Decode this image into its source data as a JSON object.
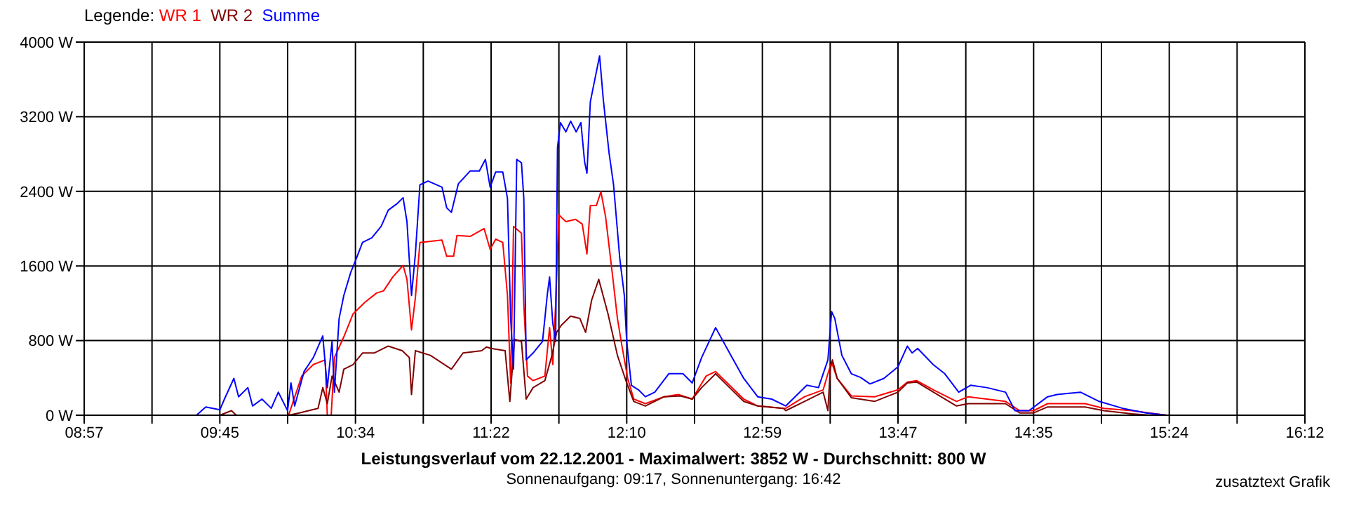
{
  "chart_data": {
    "type": "line",
    "title": "Leistungsverlauf vom 22.12.2001 - Maximalwert: 3852 W - Durchschnitt: 800 W",
    "subtitle": "Sonnenaufgang: 09:17, Sonnenuntergang: 16:42",
    "annotations": [
      "zusatztext Grafik"
    ],
    "legend_title": "Legende:",
    "legend": "top left",
    "grid": true,
    "marker": "none",
    "line_style": "solid",
    "xlim": [
      8.95,
      16.2
    ],
    "xticks": [
      {
        "value": 8.95,
        "label": "08:57"
      },
      {
        "value": 9.3528,
        "label": null
      },
      {
        "value": 9.7556,
        "label": "09:45"
      },
      {
        "value": 10.1583,
        "label": null
      },
      {
        "value": 10.5611,
        "label": "10:34"
      },
      {
        "value": 10.9639,
        "label": null
      },
      {
        "value": 11.3667,
        "label": "11:22"
      },
      {
        "value": 11.7694,
        "label": null
      },
      {
        "value": 12.1722,
        "label": "12:10"
      },
      {
        "value": 12.575,
        "label": null
      },
      {
        "value": 12.9778,
        "label": "12:59"
      },
      {
        "value": 13.3806,
        "label": null
      },
      {
        "value": 13.7833,
        "label": "13:47"
      },
      {
        "value": 14.1861,
        "label": null
      },
      {
        "value": 14.5889,
        "label": "14:35"
      },
      {
        "value": 14.9917,
        "label": null
      },
      {
        "value": 15.3944,
        "label": "15:24"
      },
      {
        "value": 15.7972,
        "label": null
      },
      {
        "value": 16.2,
        "label": "16:12"
      }
    ],
    "ylim": [
      0,
      4000
    ],
    "yticks": [
      {
        "value": 0,
        "label": "0 W"
      },
      {
        "value": 800,
        "label": "800 W"
      },
      {
        "value": 1600,
        "label": "1600 W"
      },
      {
        "value": 2400,
        "label": "2400 W"
      },
      {
        "value": 3200,
        "label": "3200 W"
      },
      {
        "value": 4000,
        "label": "4000 W"
      }
    ],
    "series": [
      {
        "name": "WR 1",
        "color": "#ff0000",
        "x": [
          10.164,
          10.242,
          10.311,
          10.381,
          10.394,
          10.417,
          10.436,
          10.492,
          10.547,
          10.617,
          10.686,
          10.728,
          10.783,
          10.844,
          10.867,
          10.894,
          10.917,
          10.944,
          11.075,
          11.103,
          11.144,
          11.164,
          11.242,
          11.325,
          11.361,
          11.394,
          11.436,
          11.464,
          11.483,
          11.5,
          11.547,
          11.561,
          11.583,
          11.616,
          11.686,
          11.714,
          11.733,
          11.75,
          11.769,
          11.811,
          11.867,
          11.908,
          11.936,
          11.956,
          11.992,
          12.019,
          12.047,
          12.089,
          12.117,
          12.144,
          12.178,
          12.214,
          12.283,
          12.394,
          12.478,
          12.561,
          12.644,
          12.7,
          12.783,
          12.867,
          12.95,
          13.103,
          13.117,
          13.228,
          13.339,
          13.367,
          13.389,
          13.422,
          13.506,
          13.644,
          13.783,
          13.839,
          13.894,
          13.994,
          14.131,
          14.2,
          14.422,
          14.506,
          14.589,
          14.672,
          14.894,
          15.006,
          15.172,
          15.339,
          15.381
        ],
        "values": [
          0,
          420,
          543,
          593,
          0,
          0,
          618,
          840,
          1087,
          1210,
          1309,
          1334,
          1482,
          1605,
          1457,
          914,
          1260,
          1852,
          1877,
          1704,
          1704,
          1927,
          1917,
          2001,
          1778,
          1887,
          1852,
          1284,
          346,
          2025,
          1951,
          1186,
          420,
          371,
          420,
          939,
          543,
          1186,
          2149,
          2075,
          2100,
          2050,
          1729,
          2248,
          2248,
          2396,
          2124,
          1482,
          1037,
          741,
          395,
          173,
          124,
          198,
          222,
          173,
          420,
          469,
          321,
          173,
          99,
          74,
          74,
          198,
          272,
          445,
          568,
          395,
          207,
          198,
          272,
          356,
          371,
          272,
          148,
          198,
          148,
          49,
          49,
          124,
          124,
          74,
          49,
          10,
          0
        ]
      },
      {
        "name": "WR 2",
        "color": "#800000",
        "x": [
          9.756,
          9.825,
          9.853,
          10.164,
          10.228,
          10.283,
          10.339,
          10.367,
          10.394,
          10.422,
          10.464,
          10.492,
          10.547,
          10.603,
          10.672,
          10.756,
          10.839,
          10.881,
          10.894,
          10.917,
          11.006,
          11.131,
          11.2,
          11.311,
          11.339,
          11.367,
          11.45,
          11.478,
          11.506,
          11.547,
          11.575,
          11.616,
          11.686,
          11.728,
          11.756,
          11.783,
          11.839,
          11.894,
          11.928,
          11.964,
          12.006,
          12.061,
          12.117,
          12.172,
          12.214,
          12.283,
          12.394,
          12.492,
          12.561,
          12.617,
          12.7,
          12.783,
          12.867,
          12.95,
          13.103,
          13.117,
          13.228,
          13.339,
          13.367,
          13.381,
          13.394,
          13.422,
          13.506,
          13.644,
          13.783,
          13.839,
          13.894,
          13.994,
          14.131,
          14.2,
          14.422,
          14.506,
          14.589,
          14.672,
          14.894,
          15.006,
          15.172,
          15.283
        ],
        "values": [
          0,
          49,
          0,
          0,
          25,
          49,
          74,
          296,
          124,
          420,
          247,
          494,
          543,
          667,
          667,
          741,
          692,
          618,
          222,
          692,
          642,
          494,
          667,
          692,
          731,
          716,
          692,
          148,
          815,
          790,
          173,
          296,
          371,
          642,
          889,
          963,
          1062,
          1037,
          889,
          1235,
          1457,
          1087,
          642,
          346,
          148,
          99,
          198,
          207,
          173,
          296,
          445,
          296,
          148,
          99,
          74,
          49,
          148,
          247,
          49,
          494,
          593,
          395,
          188,
          148,
          247,
          346,
          356,
          247,
          99,
          124,
          124,
          25,
          25,
          89,
          89,
          49,
          15,
          0
        ]
      },
      {
        "name": "Summe",
        "color": "#0000ff",
        "x": [
          9.617,
          9.672,
          9.756,
          9.783,
          9.839,
          9.867,
          9.922,
          9.95,
          10.006,
          10.061,
          10.103,
          10.158,
          10.178,
          10.2,
          10.256,
          10.311,
          10.367,
          10.394,
          10.422,
          10.436,
          10.464,
          10.492,
          10.533,
          10.561,
          10.603,
          10.658,
          10.714,
          10.756,
          10.811,
          10.844,
          10.867,
          10.894,
          10.917,
          10.944,
          10.992,
          11.075,
          11.103,
          11.131,
          11.172,
          11.242,
          11.297,
          11.333,
          11.361,
          11.394,
          11.436,
          11.464,
          11.483,
          11.5,
          11.519,
          11.547,
          11.561,
          11.575,
          11.616,
          11.672,
          11.7,
          11.714,
          11.733,
          11.75,
          11.761,
          11.778,
          11.811,
          11.839,
          11.872,
          11.9,
          11.922,
          11.936,
          11.956,
          11.978,
          12.011,
          12.033,
          12.067,
          12.094,
          12.131,
          12.158,
          12.172,
          12.2,
          12.242,
          12.283,
          12.339,
          12.422,
          12.506,
          12.561,
          12.617,
          12.7,
          12.783,
          12.867,
          12.95,
          13.033,
          13.117,
          13.242,
          13.311,
          13.367,
          13.389,
          13.408,
          13.45,
          13.506,
          13.561,
          13.617,
          13.7,
          13.783,
          13.839,
          13.867,
          13.9,
          13.992,
          14.061,
          14.144,
          14.214,
          14.311,
          14.422,
          14.478,
          14.561,
          14.672,
          14.728,
          14.867,
          14.978,
          15.117,
          15.256,
          15.381
        ],
        "values": [
          0,
          89,
          59,
          173,
          395,
          198,
          296,
          99,
          173,
          74,
          247,
          49,
          346,
          99,
          469,
          618,
          850,
          296,
          790,
          247,
          1037,
          1284,
          1531,
          1655,
          1852,
          1902,
          2025,
          2198,
          2272,
          2332,
          2075,
          1284,
          1729,
          2470,
          2510,
          2445,
          2223,
          2174,
          2480,
          2618,
          2618,
          2742,
          2445,
          2608,
          2608,
          2322,
          1037,
          494,
          2742,
          2707,
          2322,
          593,
          667,
          790,
          1284,
          1482,
          988,
          790,
          2865,
          3137,
          3038,
          3152,
          3038,
          3137,
          2717,
          2594,
          3359,
          3557,
          3852,
          3384,
          2816,
          2470,
          1680,
          1284,
          790,
          321,
          272,
          198,
          247,
          445,
          445,
          346,
          618,
          939,
          667,
          395,
          198,
          173,
          99,
          321,
          296,
          593,
          1111,
          1037,
          642,
          445,
          405,
          336,
          395,
          519,
          741,
          667,
          716,
          543,
          445,
          247,
          321,
          296,
          247,
          49,
          49,
          198,
          222,
          247,
          148,
          74,
          25,
          0
        ]
      }
    ]
  }
}
